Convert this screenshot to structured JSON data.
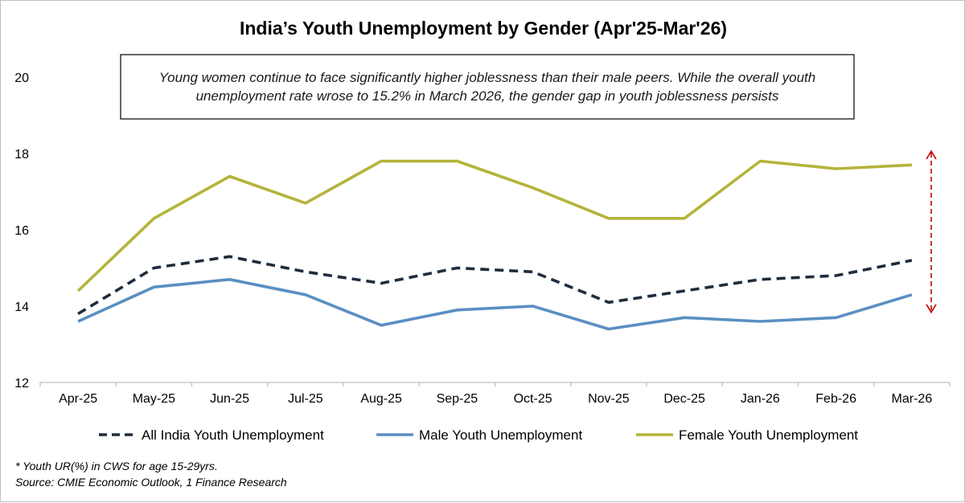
{
  "chart_data": {
    "type": "line",
    "title": "India’s Youth Unemployment by Gender (Apr'25-Mar'26)",
    "annotation": [
      "Young women continue to face significantly higher joblessness than their male peers. While the overall youth",
      "unemployment rate wrose to 15.2% in March 2026, the gender gap in youth joblessness persists"
    ],
    "categories": [
      "Apr-25",
      "May-25",
      "Jun-25",
      "Jul-25",
      "Aug-25",
      "Sep-25",
      "Oct-25",
      "Nov-25",
      "Dec-25",
      "Jan-26",
      "Feb-26",
      "Mar-26"
    ],
    "ylim": [
      12,
      20
    ],
    "yticks": [
      "12",
      "14",
      "16",
      "18",
      "20"
    ],
    "xlabel": "",
    "ylabel": "",
    "grid": false,
    "legend_position": "bottom",
    "series": [
      {
        "name": "All India Youth Unemployment",
        "color": "#1f2d3d",
        "style": "dashed",
        "values": [
          13.8,
          15.0,
          15.3,
          14.9,
          14.6,
          15.0,
          14.9,
          14.1,
          14.4,
          14.7,
          14.8,
          15.2
        ]
      },
      {
        "name": "Male Youth Unemployment",
        "color": "#5a8fc2",
        "style": "solid",
        "values": [
          13.6,
          14.5,
          14.7,
          14.3,
          13.5,
          13.9,
          14.0,
          13.4,
          13.7,
          13.6,
          13.7,
          14.3
        ]
      },
      {
        "name": "Female Youth Unemployment",
        "color": "#b4b43c",
        "style": "solid",
        "values": [
          14.4,
          16.3,
          17.4,
          16.7,
          17.8,
          17.8,
          17.1,
          16.3,
          16.3,
          17.8,
          17.6,
          17.7
        ]
      }
    ],
    "gap_arrow_color": "#c00000",
    "footnotes": [
      "* Youth UR(%) in CWS for age 15-29yrs.",
      "Source: CMIE Economic Outlook, 1 Finance Research"
    ]
  }
}
